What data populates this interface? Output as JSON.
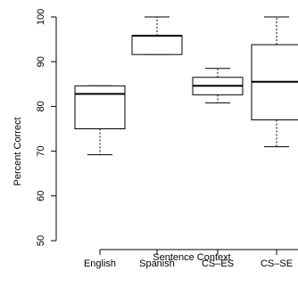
{
  "chart_data": {
    "type": "boxplot",
    "xlabel": "Sentence Context",
    "ylabel": "Percent Correct",
    "ylim": [
      50,
      100
    ],
    "y_ticks": [
      50,
      60,
      70,
      80,
      90,
      100
    ],
    "grid": false,
    "categories": [
      "English",
      "Spanish",
      "CS–ES",
      "CS–SE"
    ],
    "boxes": [
      {
        "category": "English",
        "min": 69.2,
        "q1": 75.0,
        "median": 82.8,
        "q3": 84.6,
        "max": 84.6
      },
      {
        "category": "Spanish",
        "min": 91.6,
        "q1": 91.6,
        "median": 95.8,
        "q3": 95.8,
        "max": 100
      },
      {
        "category": "CS–ES",
        "min": 80.8,
        "q1": 82.6,
        "median": 84.6,
        "q3": 86.5,
        "max": 88.5
      },
      {
        "category": "CS–SE",
        "min": 71.0,
        "q1": 77.0,
        "median": 85.5,
        "q3": 93.8,
        "max": 100
      }
    ]
  }
}
